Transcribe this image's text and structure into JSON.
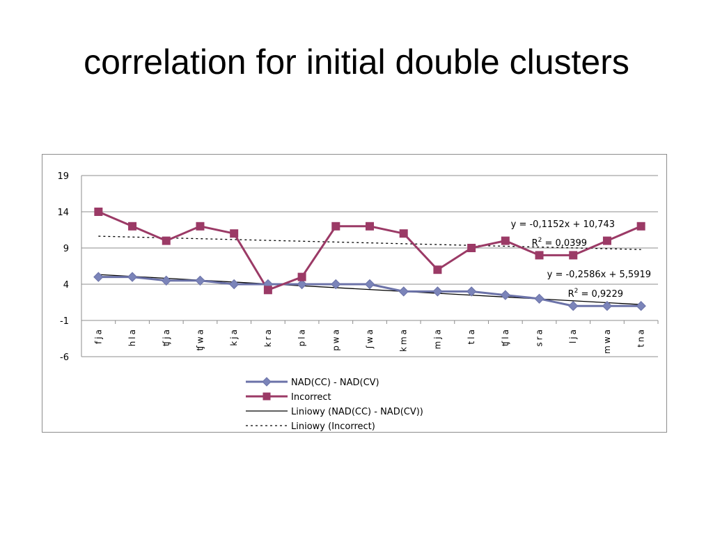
{
  "slide": {
    "title": "correlation for initial double clusters"
  },
  "colors": {
    "series_nad": "#6b72a8",
    "series_nad_marker": "#7b84b9",
    "series_incorrect": "#9b3a66",
    "trend": "#000000",
    "grid": "#8c8c8c"
  },
  "chart_data": {
    "type": "line",
    "categories": [
      "fja",
      "hla",
      "ʧja",
      "ʧwa",
      "kja",
      "kra",
      "pla",
      "pwa",
      "ʃwa",
      "kma",
      "mja",
      "tla",
      "ʧla",
      "sra",
      "lja",
      "mwa",
      "tna"
    ],
    "ylim": [
      -6,
      19
    ],
    "yticks": [
      19,
      14,
      9,
      4,
      -1,
      -6
    ],
    "grid": "horizontal",
    "legend_position": "bottom",
    "series": [
      {
        "name": "NAD(CC) - NAD(CV)",
        "marker": "diamond",
        "values": [
          5,
          5,
          4.5,
          4.5,
          4,
          4,
          4,
          4,
          4,
          3,
          3,
          3,
          2.5,
          2,
          1,
          1,
          1
        ]
      },
      {
        "name": "Incorrect",
        "marker": "square",
        "values": [
          14,
          12,
          10,
          12,
          11,
          3.2,
          5,
          12,
          12,
          11,
          6,
          9,
          10,
          8,
          8,
          10,
          12
        ]
      }
    ],
    "trendlines": [
      {
        "name": "Liniowy (NAD(CC) - NAD(CV))",
        "style": "solid",
        "slope": -0.2586,
        "intercept": 5.5919,
        "equation": "y = -0,2586x + 5,5919",
        "r2_prefix": "R",
        "r2_sup": "2",
        "r2_value": " = 0,9229"
      },
      {
        "name": "Liniowy (Incorrect)",
        "style": "dotted",
        "slope": -0.1152,
        "intercept": 10.743,
        "equation": "y = -0,1152x + 10,743",
        "r2_prefix": "R",
        "r2_sup": "2",
        "r2_value": " = 0,0399"
      }
    ]
  }
}
